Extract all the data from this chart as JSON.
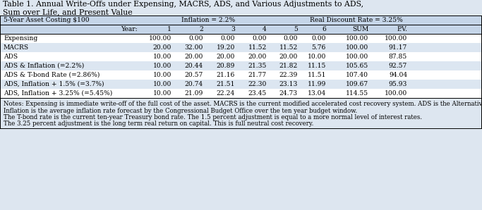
{
  "title_line1": "Table 1. Annual Write-Offs under Expensing, MACRS, ADS, and Various Adjustments to ADS,",
  "title_line2": "Sum over Life, and Present Value",
  "bg_color": "#dde6f0",
  "header1_bg": "#c5d5e8",
  "header2_bg": "#c5d5e8",
  "row_colors": [
    "#ffffff",
    "#dce6f1",
    "#ffffff",
    "#dce6f1",
    "#ffffff",
    "#dce6f1",
    "#ffffff"
  ],
  "notes_bg": "#dde6f0",
  "col_header2": [
    "Year:",
    "1",
    "2",
    "3",
    "4",
    "5",
    "6",
    "SUM",
    "P.V."
  ],
  "rows": [
    [
      "Expensing",
      "100.00",
      "0.00",
      "0.00",
      "0.00",
      "0.00",
      "0.00",
      "100.00",
      "100.00"
    ],
    [
      "MACRS",
      "20.00",
      "32.00",
      "19.20",
      "11.52",
      "11.52",
      "5.76",
      "100.00",
      "91.17"
    ],
    [
      "ADS",
      "10.00",
      "20.00",
      "20.00",
      "20.00",
      "20.00",
      "10.00",
      "100.00",
      "87.85"
    ],
    [
      "ADS & Inflation (=2.2%)",
      "10.00",
      "20.44",
      "20.89",
      "21.35",
      "21.82",
      "11.15",
      "105.65",
      "92.57"
    ],
    [
      "ADS & T-bond Rate (=2.86%)",
      "10.00",
      "20.57",
      "21.16",
      "21.77",
      "22.39",
      "11.51",
      "107.40",
      "94.04"
    ],
    [
      "ADS, Inflation + 1.5% (=3.7%)",
      "10.00",
      "20.74",
      "21.51",
      "22.30",
      "23.13",
      "11.99",
      "109.67",
      "95.93"
    ],
    [
      "ADS, Inflation + 3.25% (=5.45%)",
      "10.00",
      "21.09",
      "22.24",
      "23.45",
      "24.73",
      "13.04",
      "114.55",
      "100.00"
    ]
  ],
  "notes": [
    "Notes: Expensing is immediate write-off of the full cost of the asset. MACRS is the current modified accelerated cost recovery system. ADS is the Alternative Depreciation System, also in current law use.",
    "Inflation is the average inflation rate forecast by the Congressional Budget Office over the ten year budget window.",
    "The T-bond rate is the current ten-year Treasury bond rate. The 1.5 percent adjustment is equal to a more normal level of interest rates.",
    "The 3.25 percent adjustment is the long term real return on capital. This is full neutral cost recovery."
  ],
  "title_fontsize": 7.8,
  "header_fontsize": 6.6,
  "data_fontsize": 6.6,
  "note_fontsize": 6.2
}
